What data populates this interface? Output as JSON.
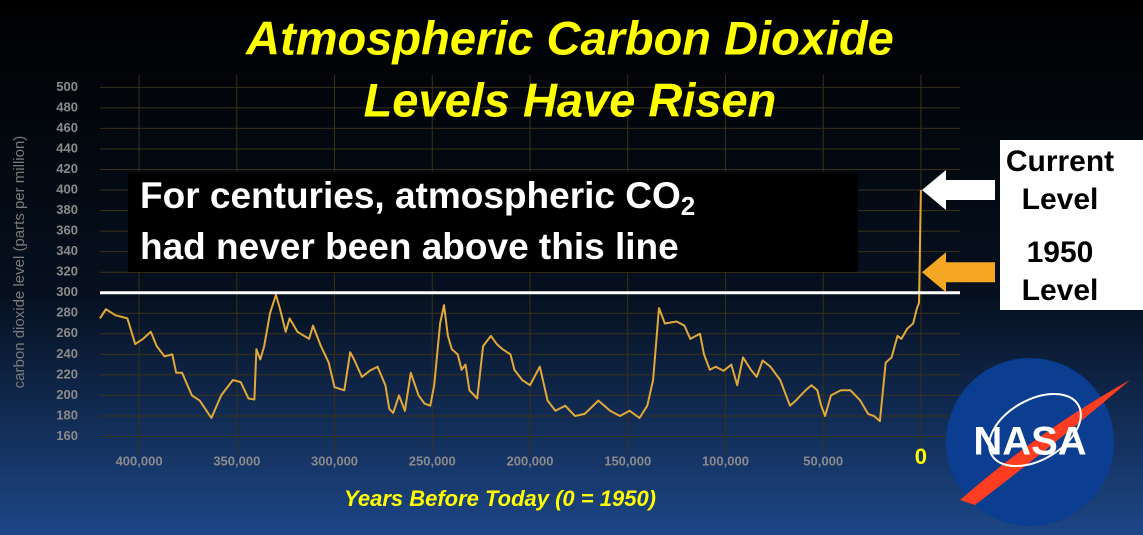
{
  "chart_data": {
    "type": "line",
    "title": [
      "Atmospheric Carbon Dioxide",
      "Levels Have Risen"
    ],
    "y_label": "carbon dioxide level (parts per million)",
    "x_label": "Years Before Today (0 = 1950)",
    "x": [
      420000,
      417000,
      412000,
      406000,
      402000,
      398000,
      394000,
      391000,
      387000,
      383000,
      381000,
      378000,
      373000,
      369000,
      363000,
      358000,
      352000,
      348000,
      344000,
      341000,
      340000,
      338000,
      336000,
      333000,
      330000,
      328000,
      325000,
      323000,
      319000,
      313000,
      311000,
      307000,
      303000,
      300000,
      295000,
      292000,
      290000,
      286000,
      282000,
      278000,
      274000,
      272000,
      270000,
      267000,
      264000,
      261000,
      257000,
      254000,
      251000,
      249000,
      246000,
      244000,
      242000,
      240000,
      237000,
      235000,
      233000,
      231000,
      227000,
      224000,
      220000,
      217000,
      214000,
      210000,
      208000,
      204000,
      200000,
      195000,
      191000,
      187000,
      182000,
      177000,
      172000,
      165000,
      159000,
      154000,
      149000,
      144000,
      140000,
      137000,
      134000,
      131000,
      125000,
      121000,
      118000,
      113000,
      111000,
      108000,
      105000,
      101000,
      97000,
      94000,
      91000,
      87000,
      84000,
      81000,
      77000,
      72000,
      67000,
      64000,
      59000,
      56000,
      53000,
      51000,
      49000,
      46000,
      41000,
      36000,
      31000,
      27000,
      24000,
      21000,
      18000,
      15000,
      12000,
      10000,
      7000,
      4000,
      2000,
      1000,
      0
    ],
    "series": [
      {
        "color": "#e0a93a",
        "values": [
          275,
          284,
          278,
          275,
          250,
          255,
          262,
          248,
          238,
          240,
          222,
          222,
          200,
          195,
          178,
          200,
          215,
          213,
          197,
          196,
          245,
          235,
          248,
          280,
          298,
          285,
          262,
          275,
          262,
          255,
          268,
          248,
          232,
          208,
          205,
          242,
          235,
          218,
          224,
          228,
          210,
          187,
          183,
          200,
          185,
          222,
          200,
          192,
          190,
          210,
          270,
          288,
          258,
          245,
          240,
          225,
          230,
          205,
          197,
          248,
          258,
          250,
          245,
          240,
          225,
          215,
          210,
          228,
          195,
          185,
          190,
          180,
          182,
          195,
          185,
          180,
          185,
          178,
          190,
          215,
          285,
          270,
          272,
          268,
          255,
          260,
          240,
          225,
          228,
          224,
          230,
          210,
          237,
          225,
          218,
          234,
          228,
          215,
          190,
          195,
          205,
          210,
          205,
          190,
          180,
          200,
          205,
          205,
          195,
          182,
          180,
          175,
          232,
          237,
          258,
          255,
          265,
          270,
          285,
          290,
          400
        ]
      }
    ],
    "xlim": [
      420000,
      -20000
    ],
    "ylim": [
      142,
      512
    ],
    "yticks": [
      160,
      180,
      200,
      220,
      240,
      260,
      280,
      300,
      320,
      340,
      360,
      380,
      400,
      420,
      440,
      460,
      480,
      500
    ],
    "xticks": [
      {
        "value": 400000,
        "label": "400,000"
      },
      {
        "value": 350000,
        "label": "350,000"
      },
      {
        "value": 300000,
        "label": "300,000"
      },
      {
        "value": 250000,
        "label": "250,000"
      },
      {
        "value": 200000,
        "label": "200,000"
      },
      {
        "value": 150000,
        "label": "150,000"
      },
      {
        "value": 100000,
        "label": "100,000"
      },
      {
        "value": 50000,
        "label": "50,000"
      },
      0
    ],
    "grid": true,
    "annotation": {
      "text": [
        "For centuries, atmospheric CO",
        "2",
        "had never been above this line"
      ],
      "value": 300
    },
    "markers": [
      {
        "label": [
          "Current",
          "Level"
        ],
        "value": 400,
        "color": "#ffffff"
      },
      {
        "label": [
          "1950",
          "Level"
        ],
        "value": 320,
        "color": "#f5a623"
      }
    ],
    "logo": "NASA"
  }
}
